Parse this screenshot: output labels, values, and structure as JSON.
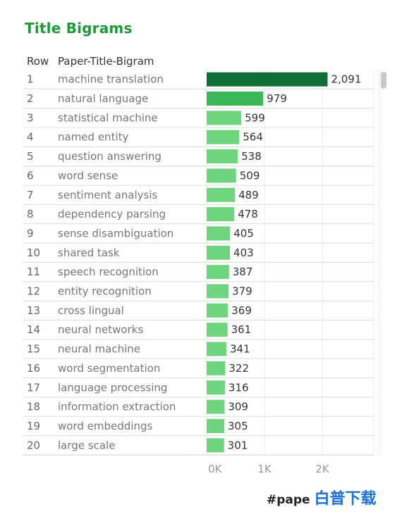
{
  "title": "Title Bigrams",
  "headers": {
    "row": "Row",
    "bigram": "Paper-Title-Bigram"
  },
  "colors": {
    "title": "#1c9a3a",
    "bar_top": "#0e6e34",
    "bar_mid": "#3cb75a",
    "bar_low": "#6fd47e"
  },
  "watermark": {
    "text": "#pape",
    "mark": "白普下载"
  },
  "chart_data": {
    "type": "bar",
    "orientation": "horizontal",
    "categories": [
      "machine translation",
      "natural language",
      "statistical machine",
      "named entity",
      "question answering",
      "word sense",
      "sentiment analysis",
      "dependency parsing",
      "sense disambiguation",
      "shared task",
      "speech recognition",
      "entity recognition",
      "cross lingual",
      "neural networks",
      "neural machine",
      "word segmentation",
      "language processing",
      "information extraction",
      "word embeddings",
      "large scale"
    ],
    "rows": [
      "1",
      "2",
      "3",
      "4",
      "5",
      "6",
      "7",
      "8",
      "9",
      "10",
      "11",
      "12",
      "13",
      "14",
      "15",
      "16",
      "17",
      "18",
      "19",
      "20"
    ],
    "values": [
      2091,
      979,
      599,
      564,
      538,
      509,
      489,
      478,
      405,
      403,
      387,
      379,
      369,
      361,
      341,
      322,
      316,
      309,
      305,
      301
    ],
    "value_labels": [
      "2,091",
      "979",
      "599",
      "564",
      "538",
      "509",
      "489",
      "478",
      "405",
      "403",
      "387",
      "379",
      "369",
      "361",
      "341",
      "322",
      "316",
      "309",
      "305",
      "301"
    ],
    "xticks": [
      0,
      1000,
      2000
    ],
    "xtick_labels": [
      "0K",
      "1K",
      "2K"
    ],
    "xlim": [
      0,
      2300
    ],
    "grid": true
  }
}
